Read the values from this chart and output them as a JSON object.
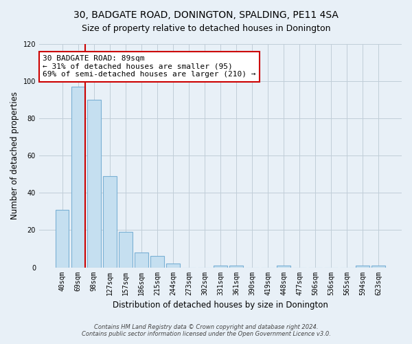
{
  "title": "30, BADGATE ROAD, DONINGTON, SPALDING, PE11 4SA",
  "subtitle": "Size of property relative to detached houses in Donington",
  "xlabel": "Distribution of detached houses by size in Donington",
  "ylabel": "Number of detached properties",
  "bar_labels": [
    "40sqm",
    "69sqm",
    "98sqm",
    "127sqm",
    "157sqm",
    "186sqm",
    "215sqm",
    "244sqm",
    "273sqm",
    "302sqm",
    "331sqm",
    "361sqm",
    "390sqm",
    "419sqm",
    "448sqm",
    "477sqm",
    "506sqm",
    "536sqm",
    "565sqm",
    "594sqm",
    "623sqm"
  ],
  "bar_heights": [
    31,
    97,
    90,
    49,
    19,
    8,
    6,
    2,
    0,
    0,
    1,
    1,
    0,
    0,
    1,
    0,
    0,
    0,
    0,
    1,
    1
  ],
  "bar_color": "#c5dff0",
  "bar_edge_color": "#7ab0d4",
  "marker_line_color": "#cc0000",
  "annotation_line1": "30 BADGATE ROAD: 89sqm",
  "annotation_line2": "← 31% of detached houses are smaller (95)",
  "annotation_line3": "69% of semi-detached houses are larger (210) →",
  "annotation_box_color": "white",
  "annotation_box_edge": "#cc0000",
  "ylim": [
    0,
    120
  ],
  "yticks": [
    0,
    20,
    40,
    60,
    80,
    100,
    120
  ],
  "footnote_line1": "Contains HM Land Registry data © Crown copyright and database right 2024.",
  "footnote_line2": "Contains public sector information licensed under the Open Government Licence v3.0.",
  "bg_color": "#e8f0f7",
  "plot_bg_color": "#e8f0f7",
  "grid_color": "#c0cdd8",
  "title_fontsize": 10,
  "subtitle_fontsize": 9,
  "axis_label_fontsize": 8.5,
  "tick_fontsize": 7,
  "annotation_fontsize": 8,
  "footnote_fontsize": 6
}
